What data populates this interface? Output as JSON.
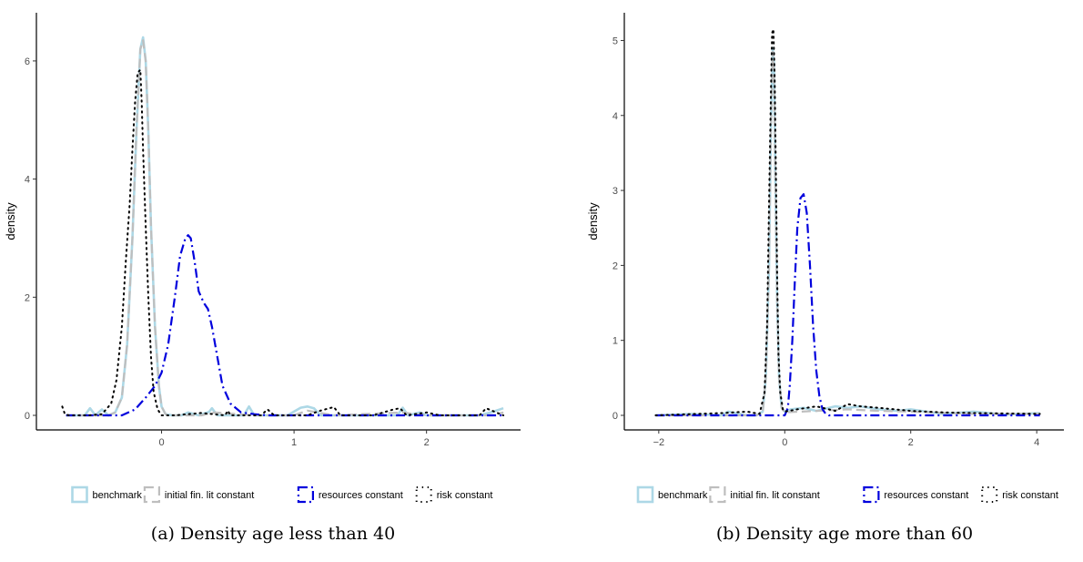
{
  "chart_data": [
    {
      "type": "line",
      "caption": "(a) Density age less than 40",
      "xlabel": "",
      "ylabel": "density",
      "xlim": [
        -0.78,
        2.6
      ],
      "ylim": [
        0,
        6.6
      ],
      "x_ticks": [
        0,
        1,
        2
      ],
      "y_ticks": [
        0,
        2,
        4,
        6
      ],
      "grid": false,
      "legend_position": "bottom",
      "series": [
        {
          "name": "benchmark",
          "color": "#add8e6",
          "dash": "solid",
          "x": [
            -0.72,
            -0.58,
            -0.54,
            -0.5,
            -0.45,
            -0.4,
            -0.35,
            -0.3,
            -0.26,
            -0.22,
            -0.19,
            -0.16,
            -0.14,
            -0.12,
            -0.1,
            -0.08,
            -0.05,
            -0.02,
            0.0,
            0.03,
            0.08,
            0.15,
            0.2,
            0.28,
            0.36,
            0.38,
            0.42,
            0.62,
            0.66,
            0.7,
            0.95,
            1.05,
            1.1,
            1.15,
            1.2,
            1.4,
            1.78,
            1.82,
            1.86,
            1.95,
            2.0,
            2.4,
            2.5,
            2.58
          ],
          "y": [
            0,
            0,
            0.12,
            0,
            0.1,
            0,
            0.05,
            0.3,
            1.2,
            3.0,
            4.8,
            6.2,
            6.4,
            6.0,
            4.8,
            3.2,
            1.5,
            0.5,
            0.15,
            0.02,
            0,
            0,
            0.05,
            0,
            0.06,
            0.12,
            0,
            0,
            0.15,
            0,
            0,
            0.13,
            0.15,
            0.12,
            0,
            0,
            0,
            0.13,
            0,
            0.05,
            0,
            0,
            0.06,
            0.12
          ]
        },
        {
          "name": "initial fin. lit constant",
          "color": "#bebebe",
          "dash": "long",
          "x": [
            -0.72,
            -0.5,
            -0.4,
            -0.35,
            -0.3,
            -0.26,
            -0.22,
            -0.19,
            -0.16,
            -0.14,
            -0.12,
            -0.1,
            -0.08,
            -0.05,
            -0.02,
            0.0,
            0.03,
            0.1,
            0.3,
            0.4,
            0.7,
            1.0,
            1.1,
            1.3,
            1.82,
            2.0,
            2.5,
            2.58
          ],
          "y": [
            0,
            0,
            0,
            0.05,
            0.3,
            1.2,
            3.0,
            4.8,
            6.2,
            6.35,
            6.0,
            4.8,
            3.2,
            1.5,
            0.5,
            0.15,
            0.02,
            0,
            0,
            0.05,
            0,
            0,
            0.08,
            0,
            0.05,
            0,
            0,
            0.05
          ]
        },
        {
          "name": "resources constant",
          "color": "#0000dd",
          "dash": "dashdot",
          "x": [
            -0.72,
            -0.3,
            -0.2,
            -0.12,
            -0.05,
            0.0,
            0.05,
            0.1,
            0.14,
            0.18,
            0.2,
            0.22,
            0.25,
            0.28,
            0.32,
            0.35,
            0.38,
            0.42,
            0.46,
            0.52,
            0.6,
            0.7,
            0.8,
            1.0,
            1.5,
            2.0,
            2.58
          ],
          "y": [
            0,
            0,
            0.1,
            0.3,
            0.5,
            0.72,
            1.2,
            2.0,
            2.7,
            3.0,
            3.05,
            3.0,
            2.6,
            2.1,
            1.9,
            1.8,
            1.5,
            1.0,
            0.5,
            0.2,
            0.05,
            0.02,
            0,
            0,
            0,
            0,
            0
          ]
        },
        {
          "name": "risk constant",
          "color": "#000000",
          "dash": "dotted",
          "x": [
            -0.75,
            -0.73,
            -0.7,
            -0.55,
            -0.45,
            -0.38,
            -0.34,
            -0.3,
            -0.27,
            -0.24,
            -0.22,
            -0.2,
            -0.18,
            -0.16,
            -0.15,
            -0.14,
            -0.12,
            -0.1,
            -0.08,
            -0.06,
            -0.03,
            0.0,
            0.1,
            0.3,
            0.48,
            0.5,
            0.52,
            0.75,
            0.8,
            0.85,
            1.1,
            1.2,
            1.3,
            1.35,
            1.6,
            1.75,
            1.8,
            1.85,
            2.0,
            2.1,
            2.4,
            2.45,
            2.58
          ],
          "y": [
            0.15,
            0.02,
            0,
            0,
            0.02,
            0.2,
            0.6,
            1.5,
            2.6,
            3.6,
            4.5,
            5.3,
            5.8,
            5.85,
            5.3,
            4.5,
            3.2,
            2.0,
            1.0,
            0.4,
            0.1,
            0,
            0,
            0.04,
            0,
            0.08,
            0,
            0,
            0.1,
            0,
            0,
            0.08,
            0.14,
            0,
            0,
            0.1,
            0.12,
            0,
            0.05,
            0,
            0,
            0.12,
            0
          ]
        }
      ]
    },
    {
      "type": "line",
      "caption": "(b) Density age more than 60",
      "xlabel": "",
      "ylabel": "density",
      "xlim": [
        -2.2,
        4.2
      ],
      "ylim": [
        0,
        5.2
      ],
      "x_ticks": [
        -2,
        0,
        2,
        4
      ],
      "y_ticks": [
        0,
        1,
        2,
        3,
        4,
        5
      ],
      "grid": false,
      "legend_position": "bottom",
      "series": [
        {
          "name": "benchmark",
          "color": "#add8e6",
          "dash": "solid",
          "x": [
            -2.05,
            -1.5,
            -1.0,
            -0.9,
            -0.6,
            -0.45,
            -0.35,
            -0.3,
            -0.25,
            -0.22,
            -0.19,
            -0.17,
            -0.15,
            -0.12,
            -0.09,
            -0.05,
            0.0,
            0.1,
            0.3,
            0.5,
            0.8,
            1.0,
            1.2,
            1.5,
            1.8,
            2.0,
            2.5,
            3.0,
            3.5,
            4.05
          ],
          "y": [
            0,
            0.02,
            0,
            0.05,
            0,
            0,
            0.05,
            0.5,
            2.0,
            3.8,
            4.9,
            4.7,
            3.2,
            1.5,
            0.5,
            0.1,
            0.05,
            0.08,
            0.1,
            0.06,
            0.12,
            0.1,
            0.12,
            0.08,
            0.06,
            0.08,
            0.02,
            0.05,
            0.01,
            0.03
          ]
        },
        {
          "name": "initial fin. lit constant",
          "color": "#bebebe",
          "dash": "long",
          "x": [
            -2.05,
            -0.45,
            -0.35,
            -0.3,
            -0.25,
            -0.22,
            -0.19,
            -0.17,
            -0.15,
            -0.12,
            -0.09,
            -0.05,
            0.0,
            0.5,
            1.0,
            1.5,
            2.0,
            3.0,
            4.05
          ],
          "y": [
            0,
            0,
            0.05,
            0.5,
            2.0,
            3.8,
            4.85,
            4.6,
            3.2,
            1.5,
            0.5,
            0.1,
            0.04,
            0.06,
            0.08,
            0.06,
            0.05,
            0.02,
            0.02
          ]
        },
        {
          "name": "resources constant",
          "color": "#0000dd",
          "dash": "dashdot",
          "x": [
            -2.05,
            -0.5,
            0.0,
            0.05,
            0.08,
            0.12,
            0.16,
            0.2,
            0.25,
            0.3,
            0.35,
            0.4,
            0.45,
            0.5,
            0.55,
            0.6,
            0.65,
            0.7,
            1.0,
            2.0,
            4.05
          ],
          "y": [
            0,
            0,
            0,
            0.1,
            0.4,
            1.0,
            1.8,
            2.5,
            2.9,
            2.95,
            2.7,
            2.0,
            1.2,
            0.6,
            0.25,
            0.08,
            0.02,
            0,
            0,
            0,
            0
          ]
        },
        {
          "name": "risk constant",
          "color": "#000000",
          "dash": "dotted",
          "x": [
            -2.05,
            -1.0,
            -0.6,
            -0.4,
            -0.32,
            -0.28,
            -0.25,
            -0.22,
            -0.2,
            -0.18,
            -0.16,
            -0.14,
            -0.12,
            -0.1,
            -0.07,
            -0.03,
            0.0,
            0.2,
            0.5,
            0.8,
            1.0,
            1.2,
            1.5,
            2.0,
            2.5,
            3.0,
            4.05
          ],
          "y": [
            0,
            0.03,
            0.05,
            0.02,
            0.3,
            1.2,
            2.8,
            4.3,
            5.1,
            5.15,
            4.5,
            3.2,
            1.8,
            0.8,
            0.3,
            0.08,
            0.05,
            0.08,
            0.12,
            0.06,
            0.15,
            0.12,
            0.1,
            0.06,
            0.04,
            0.03,
            0.02
          ]
        }
      ]
    }
  ]
}
